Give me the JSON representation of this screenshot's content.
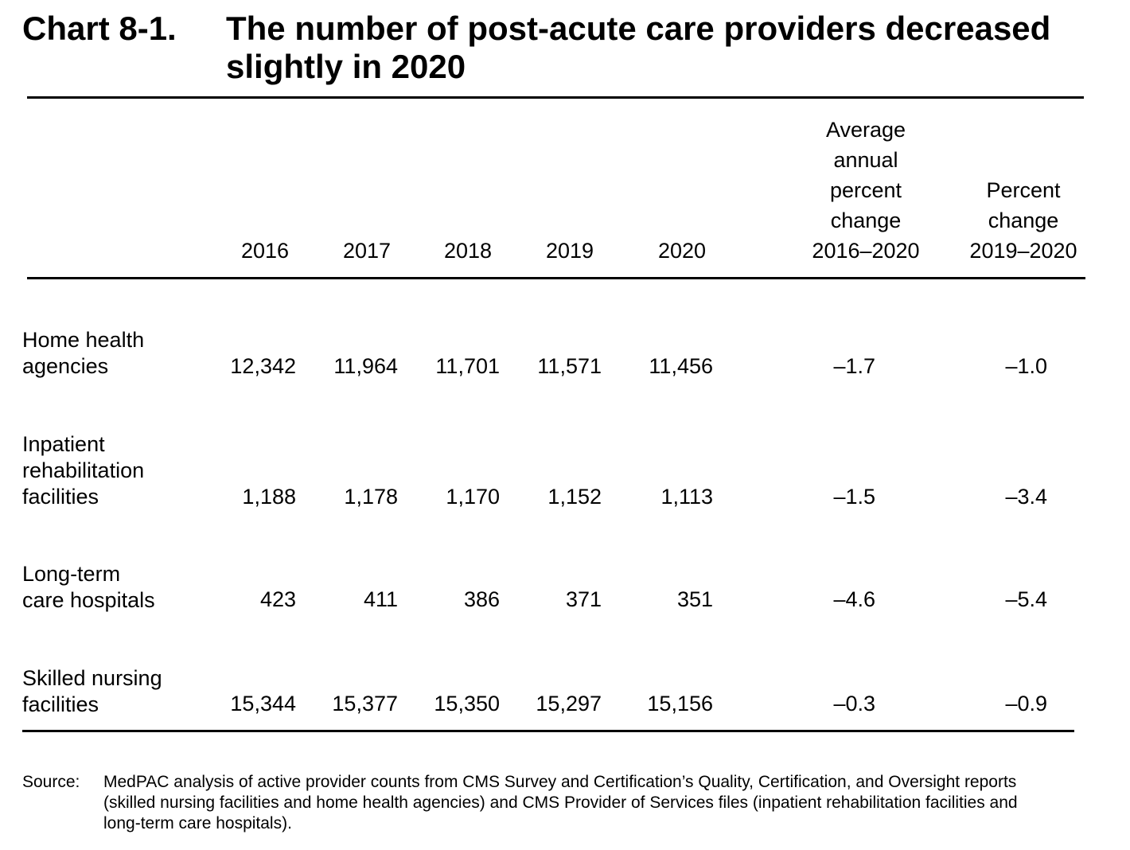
{
  "chart": {
    "label": "Chart 8-1.",
    "title": "The number of post-acute care providers decreased slightly in 2020"
  },
  "table": {
    "columns": {
      "y2016": "2016",
      "y2017": "2017",
      "y2018": "2018",
      "y2019": "2019",
      "y2020": "2020",
      "avg": "Average\nannual\npercent\nchange\n2016–2020",
      "pct": "Percent\nchange\n2019–2020"
    },
    "rows": [
      {
        "label": "Home health\nagencies",
        "values": [
          "12,342",
          "11,964",
          "11,701",
          "11,571",
          "11,456"
        ],
        "avg_change": "–1.7",
        "pct_change": "–1.0"
      },
      {
        "label": "Inpatient\nrehabilitation\nfacilities",
        "values": [
          "1,188",
          "1,178",
          "1,170",
          "1,152",
          "1,113"
        ],
        "avg_change": "–1.5",
        "pct_change": "–3.4"
      },
      {
        "label": "Long-term\ncare hospitals",
        "values": [
          "423",
          "411",
          "386",
          "371",
          "351"
        ],
        "avg_change": "–4.6",
        "pct_change": "–5.4"
      },
      {
        "label": "Skilled nursing\nfacilities",
        "values": [
          "15,344",
          "15,377",
          "15,350",
          "15,297",
          "15,156"
        ],
        "avg_change": "–0.3",
        "pct_change": "–0.9"
      }
    ]
  },
  "source": {
    "label": "Source:",
    "text": "MedPAC analysis of active provider counts from CMS Survey and Certification’s Quality, Certification, and Oversight reports (skilled nursing facilities and home health agencies) and CMS Provider of Services files (inpatient rehabilitation facilities and long-term care hospitals)."
  }
}
